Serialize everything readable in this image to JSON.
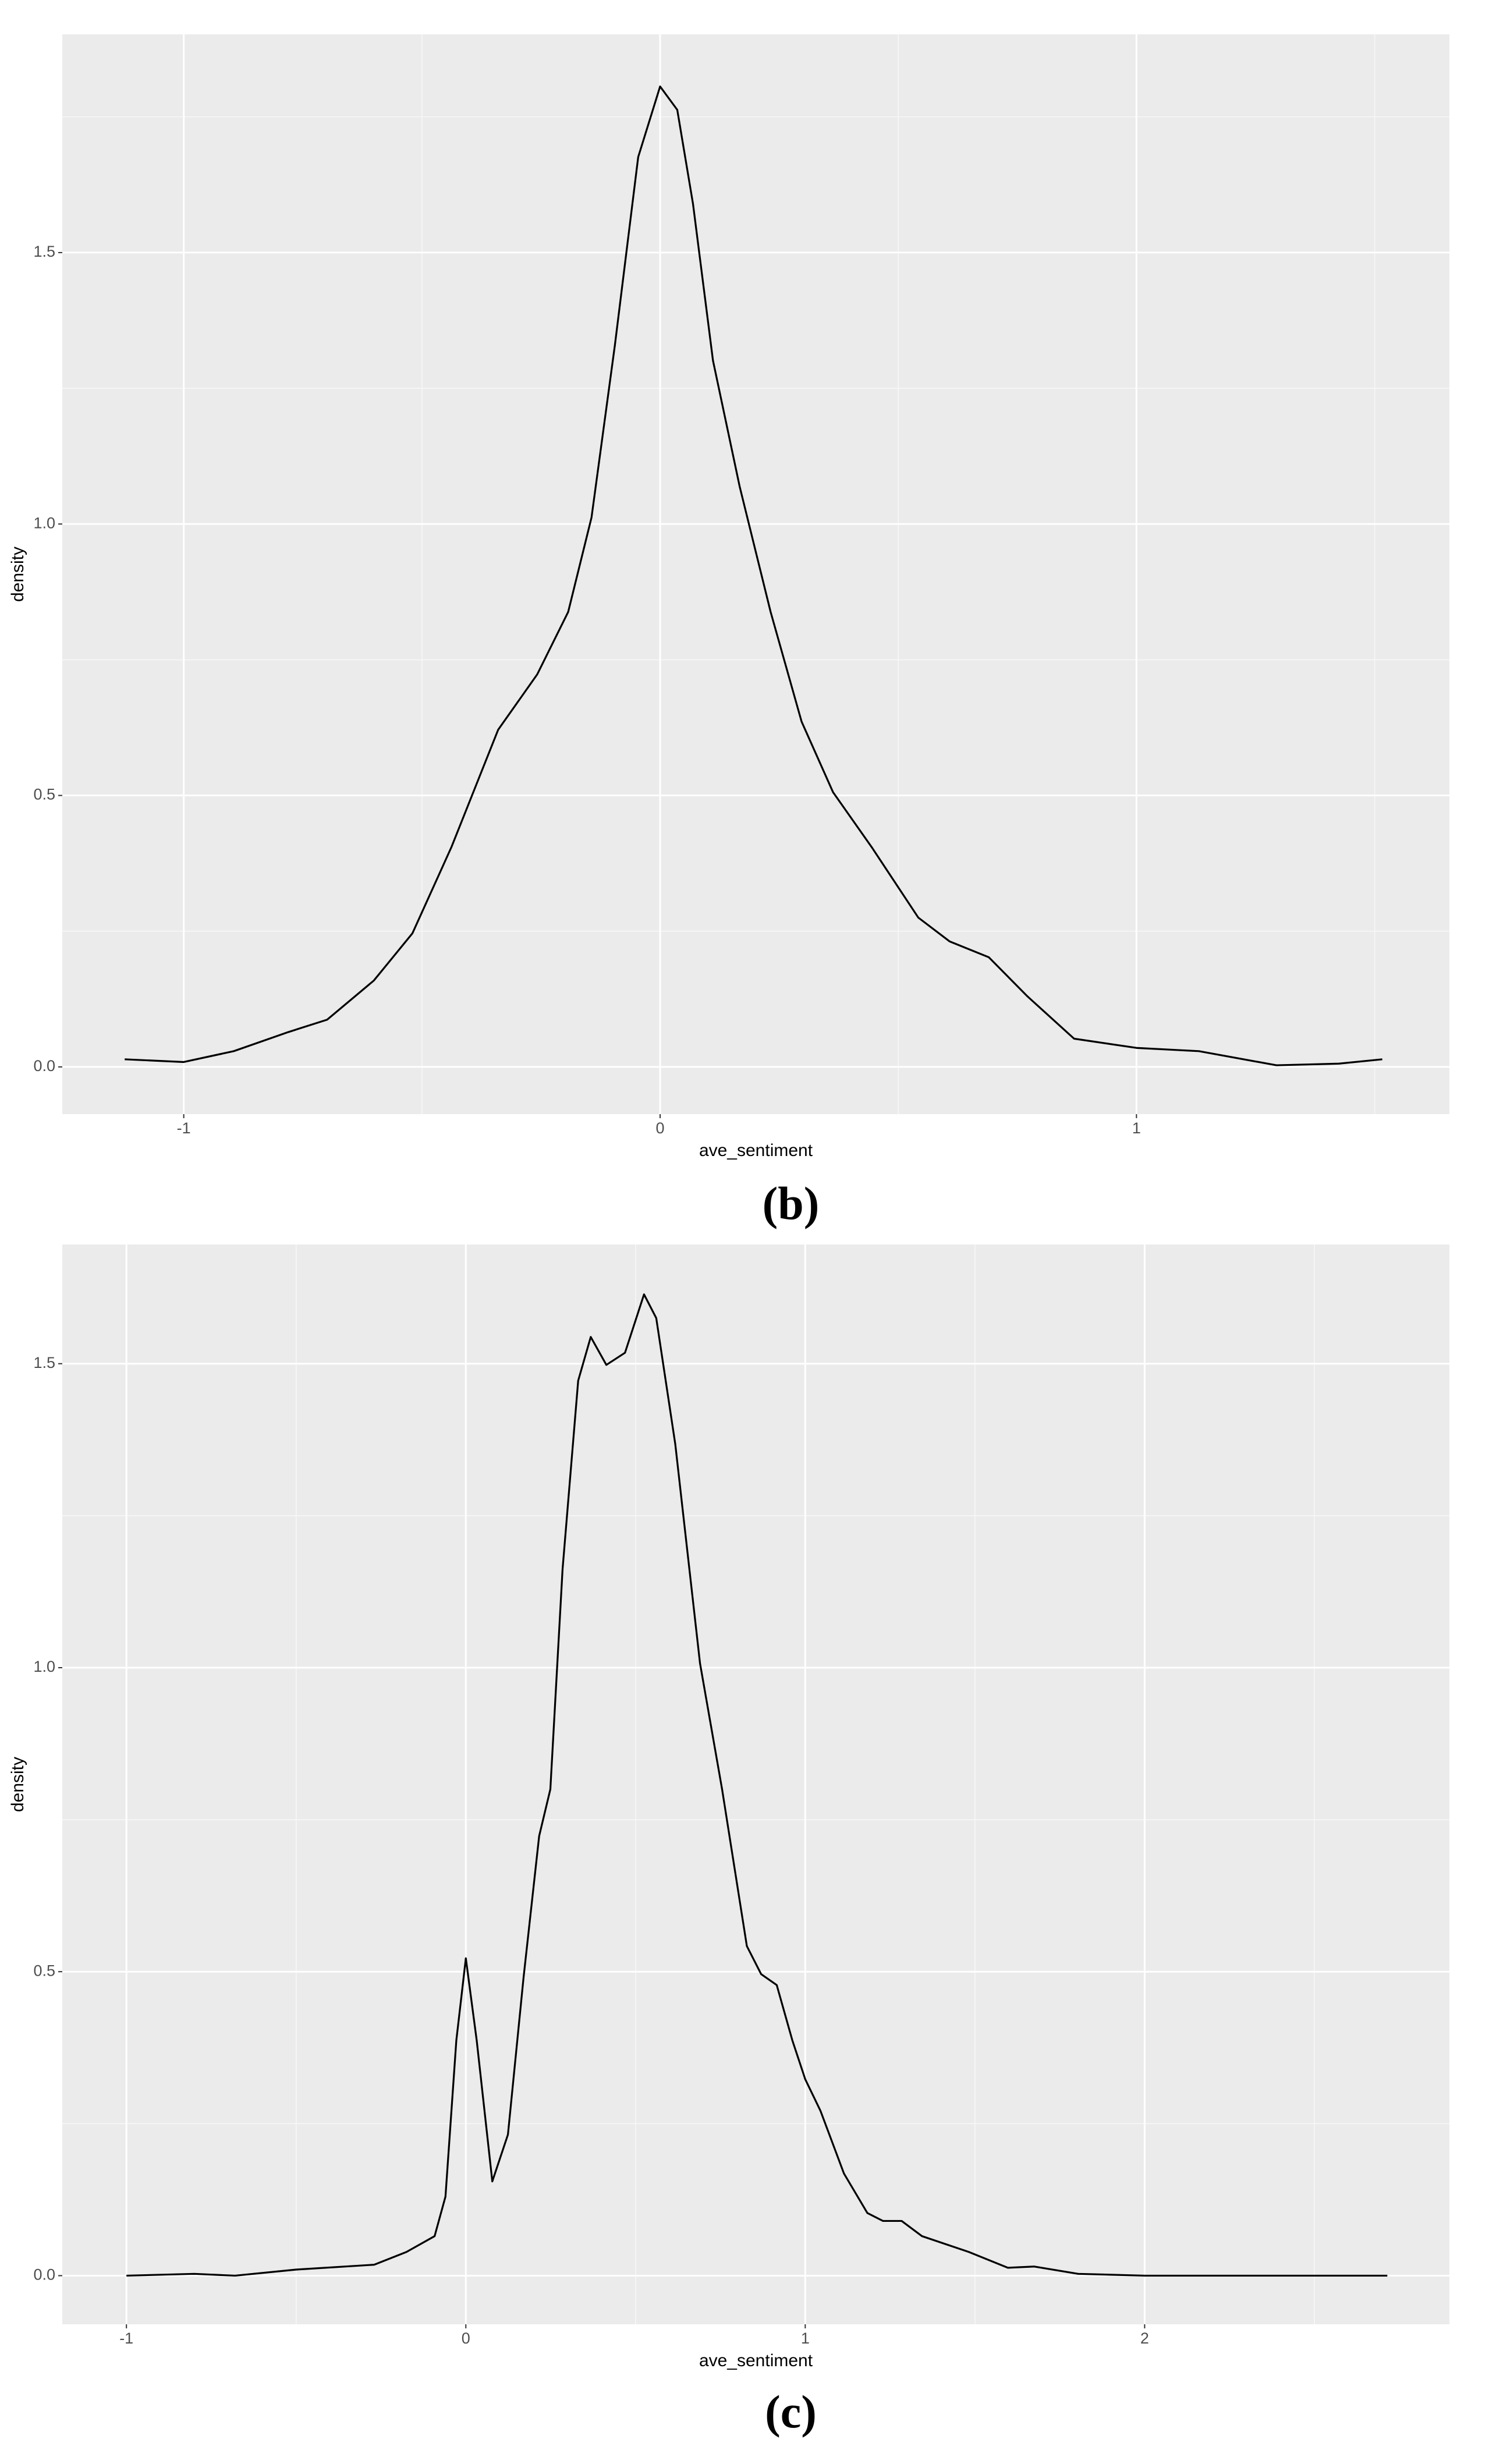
{
  "chart_data": [
    {
      "type": "line",
      "caption": "(b)",
      "xlabel": "ave_sentiment",
      "ylabel": "density",
      "color": "#000000",
      "grid": true,
      "xlim": [
        -1.255,
        1.657
      ],
      "ylim": [
        -0.087,
        1.902
      ],
      "xticks": [
        -1,
        0,
        1
      ],
      "yticks": [
        {
          "value": 0,
          "label": "0.0"
        },
        0.5,
        {
          "value": 1,
          "label": "1.0"
        },
        1.5
      ],
      "x": [
        -1.124,
        -1.0,
        -0.895,
        -0.781,
        -0.699,
        -0.601,
        -0.52,
        -0.438,
        -0.34,
        -0.258,
        -0.193,
        -0.144,
        -0.095,
        -0.046,
        0,
        0.036,
        0.069,
        0.111,
        0.167,
        0.232,
        0.297,
        0.363,
        0.444,
        0.542,
        0.608,
        0.69,
        0.771,
        0.869,
        1.0,
        1.131,
        1.294,
        1.425,
        1.516
      ],
      "values": [
        0.014,
        0.009,
        0.029,
        0.064,
        0.087,
        0.159,
        0.246,
        0.405,
        0.621,
        0.723,
        0.838,
        1.012,
        1.329,
        1.676,
        1.806,
        1.763,
        1.59,
        1.301,
        1.069,
        0.838,
        0.636,
        0.506,
        0.405,
        0.275,
        0.231,
        0.202,
        0.13,
        0.052,
        0.035,
        0.029,
        0.003,
        0.006,
        0.014
      ]
    },
    {
      "type": "line",
      "caption": "(c)",
      "xlabel": "ave_sentiment",
      "ylabel": "density",
      "color": "#000000",
      "grid": true,
      "xlim": [
        -1.189,
        2.898
      ],
      "ylim": [
        -0.08,
        1.696
      ],
      "xticks": [
        -1,
        0,
        1,
        2
      ],
      "yticks": [
        {
          "value": 0,
          "label": "0.0"
        },
        0.5,
        {
          "value": 1,
          "label": "1.0"
        },
        1.5
      ],
      "x": [
        -1.0,
        -0.8,
        -0.68,
        -0.5,
        -0.27,
        -0.175,
        -0.092,
        -0.06,
        -0.028,
        0,
        0.032,
        0.078,
        0.124,
        0.17,
        0.216,
        0.249,
        0.285,
        0.331,
        0.368,
        0.414,
        0.469,
        0.525,
        0.561,
        0.617,
        0.69,
        0.755,
        0.828,
        0.87,
        0.916,
        0.962,
        1.0,
        1.045,
        1.114,
        1.183,
        1.229,
        1.284,
        1.344,
        1.482,
        1.597,
        1.675,
        1.804,
        2.0,
        2.31,
        2.715
      ],
      "values": [
        0,
        0.003,
        0,
        0.01,
        0.018,
        0.039,
        0.065,
        0.13,
        0.387,
        0.522,
        0.387,
        0.155,
        0.232,
        0.49,
        0.723,
        0.8,
        1.162,
        1.472,
        1.544,
        1.498,
        1.518,
        1.614,
        1.575,
        1.368,
        1.007,
        0.8,
        0.542,
        0.496,
        0.478,
        0.387,
        0.323,
        0.271,
        0.168,
        0.103,
        0.09,
        0.09,
        0.065,
        0.039,
        0.013,
        0.015,
        0.003,
        0,
        0,
        0
      ]
    }
  ]
}
